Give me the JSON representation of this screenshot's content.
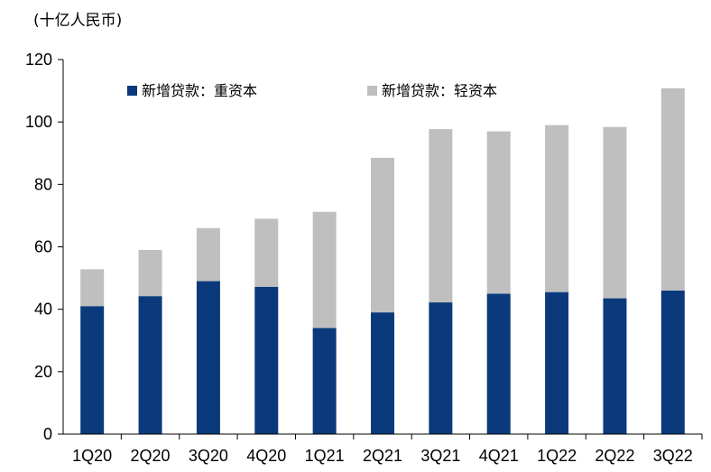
{
  "chart_data": {
    "type": "bar",
    "stacked": true,
    "unit_label": "(十亿人民币)",
    "categories": [
      "1Q20",
      "2Q20",
      "3Q20",
      "4Q20",
      "1Q21",
      "2Q21",
      "3Q21",
      "4Q21",
      "1Q22",
      "2Q22",
      "3Q22"
    ],
    "series": [
      {
        "name": "新增贷款：重资本",
        "color": "#0a3a7c",
        "values": [
          41,
          44.2,
          49,
          47.2,
          34,
          39,
          42.2,
          45,
          45.5,
          43.5,
          46
        ]
      },
      {
        "name": "新增贷款：轻资本",
        "color": "#bfbfbf",
        "values": [
          11.8,
          14.8,
          17,
          21.8,
          37.2,
          49.5,
          55.5,
          52,
          53.5,
          54.9,
          64.8
        ]
      }
    ],
    "ylim": [
      0,
      120
    ],
    "yticks": [
      0,
      20,
      40,
      60,
      80,
      100,
      120
    ],
    "grid": false,
    "legend_position": "top"
  }
}
